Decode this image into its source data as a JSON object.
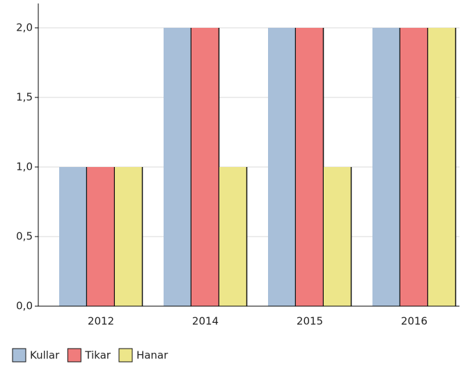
{
  "chart_data": {
    "type": "bar",
    "categories": [
      "2012",
      "2014",
      "2015",
      "2016"
    ],
    "series": [
      {
        "name": "Kullar",
        "color": "#a8bfd9",
        "values": [
          1,
          2,
          2,
          2
        ]
      },
      {
        "name": "Tikar",
        "color": "#f07c7c",
        "values": [
          1,
          2,
          2,
          2
        ]
      },
      {
        "name": "Hanar",
        "color": "#ede68a",
        "values": [
          1,
          1,
          1,
          2
        ]
      }
    ],
    "ylim": [
      0,
      2.2
    ],
    "yticks": [
      {
        "value": 0,
        "label": "0,0"
      },
      {
        "value": 0.5,
        "label": "0,5"
      },
      {
        "value": 1,
        "label": "1,0"
      },
      {
        "value": 1.5,
        "label": "1,5"
      },
      {
        "value": 2,
        "label": "2,0"
      }
    ],
    "grid": true,
    "legend": "bottom-left"
  }
}
